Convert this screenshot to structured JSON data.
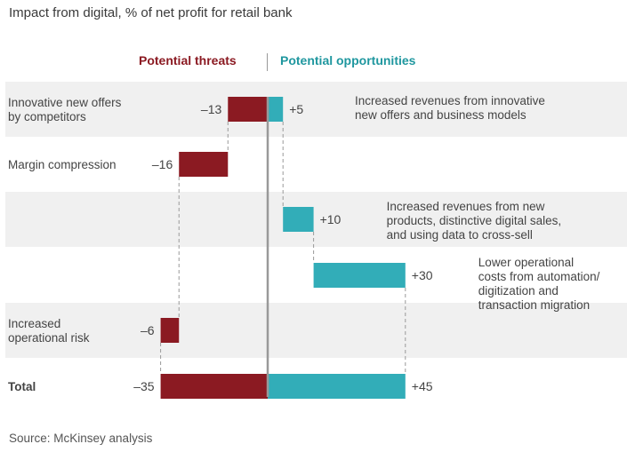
{
  "title": "Impact from digital, % of net profit for retail bank",
  "legend": {
    "threats": "Potential threats",
    "opportunities": "Potential opportunities",
    "threat_color": "#8b1a22",
    "opportunity_color": "#32adb8"
  },
  "source": "Source: McKinsey analysis",
  "chart_data": {
    "type": "bar",
    "subtype": "waterfall",
    "title": "Impact from digital, % of net profit for retail bank",
    "xlabel": "",
    "ylabel": "% of net profit",
    "xlim": [
      -35,
      45
    ],
    "grid": false,
    "legend_position": "top-center",
    "rows": [
      {
        "category": "Innovative new offers by competitors",
        "category_lines": [
          "Innovative new offers",
          "by competitors"
        ],
        "threat": -13,
        "threat_label": "–13",
        "opportunity": 5,
        "opportunity_label": "+5",
        "description_lines": [
          "Increased revenues from innovative",
          "new offers and business models"
        ],
        "shaded": true,
        "bold": false
      },
      {
        "category": "Margin compression",
        "category_lines": [
          "Margin compression"
        ],
        "threat": -16,
        "threat_label": "–16",
        "opportunity": null,
        "opportunity_label": null,
        "description_lines": [],
        "shaded": false,
        "bold": false
      },
      {
        "category": "",
        "category_lines": [],
        "threat": null,
        "threat_label": null,
        "opportunity": 10,
        "opportunity_label": "+10",
        "description_lines": [
          "Increased revenues from new",
          "products, distinctive digital sales,",
          "and using data to cross-sell"
        ],
        "shaded": true,
        "bold": false
      },
      {
        "category": "",
        "category_lines": [],
        "threat": null,
        "threat_label": null,
        "opportunity": 30,
        "opportunity_label": "+30",
        "description_lines": [
          "Lower operational",
          "costs from automation/",
          "digitization and",
          "transaction migration"
        ],
        "shaded": false,
        "bold": false
      },
      {
        "category": "Increased operational risk",
        "category_lines": [
          "Increased",
          "operational risk"
        ],
        "threat": -6,
        "threat_label": "–6",
        "opportunity": null,
        "opportunity_label": null,
        "description_lines": [],
        "shaded": true,
        "bold": false
      },
      {
        "category": "Total",
        "category_lines": [
          "Total"
        ],
        "threat": -35,
        "threat_label": "–35",
        "opportunity": 45,
        "opportunity_label": "+45",
        "description_lines": [],
        "shaded": false,
        "bold": true,
        "total": true
      }
    ]
  }
}
